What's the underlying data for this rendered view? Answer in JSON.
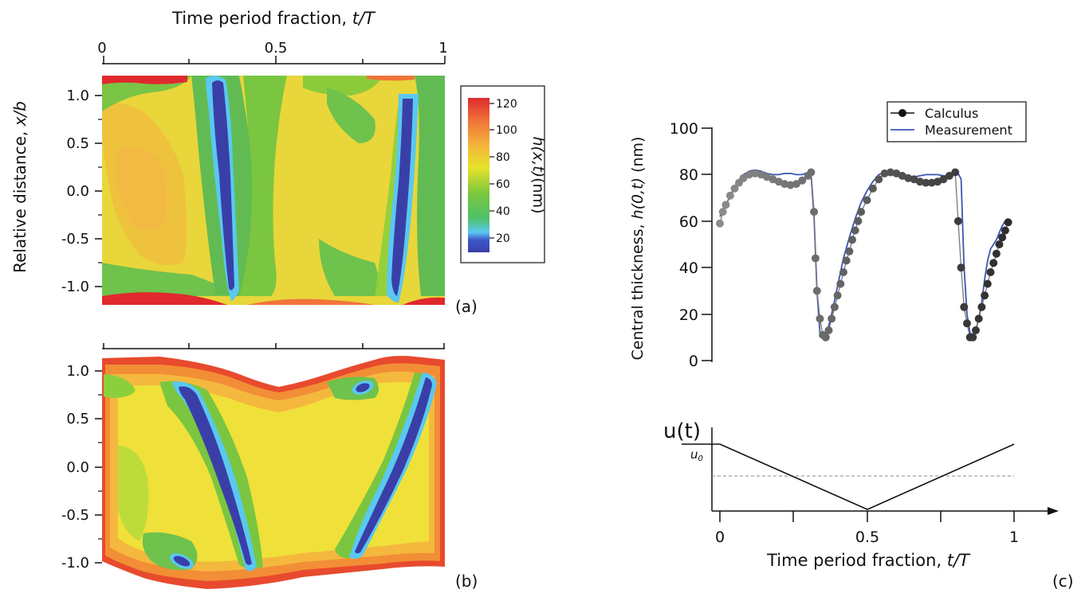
{
  "panel_a": {
    "top_axis_title": "Time period fraction, ",
    "top_axis_title_var": "t/T",
    "top_ticks": [
      "0",
      "0.5",
      "1"
    ],
    "y_axis_title": "Relative distance, ",
    "y_axis_title_var": "x/b",
    "y_ticks": [
      "1.0",
      "0.5",
      "0.0",
      "-0.5",
      "-1.0"
    ],
    "label": "(a)",
    "colorbar": {
      "title_var": "h(x,t)",
      "title_unit": "(nm)",
      "ticks": [
        "120",
        "100",
        "80",
        "60",
        "40",
        "20"
      ],
      "range": [
        10,
        125
      ]
    }
  },
  "panel_b": {
    "y_ticks": [
      "1.0",
      "0.5",
      "0.0",
      "-0.5",
      "-1.0"
    ],
    "label": "(b)"
  },
  "panel_c": {
    "label": "(c)",
    "y_axis_title": "Central thickness, ",
    "y_axis_title_var": "h(0,t)",
    "y_axis_unit": " (nm)",
    "y_ticks": [
      "100",
      "80",
      "60",
      "40",
      "20",
      "0"
    ],
    "legend": [
      "Calculus",
      "Measurement"
    ],
    "inset_ylabel": "u(t)",
    "inset_u0": "u",
    "inset_u0_sub": "0",
    "x_ticks": [
      "0",
      "0.5",
      "1"
    ],
    "x_axis_title": "Time period fraction, ",
    "x_axis_title_var": "t/T",
    "colors": {
      "calculus_light": "#8c8c8c",
      "calculus_dark": "#2a2a2a",
      "measurement": "#3c55b4"
    }
  },
  "chart_data": [
    {
      "type": "heatmap",
      "panel": "a",
      "x_range": [
        0,
        1
      ],
      "y_range": [
        -1.2,
        1.2
      ],
      "z_range": [
        10,
        125
      ],
      "z_unit": "nm"
    },
    {
      "type": "heatmap",
      "panel": "b",
      "x_range": [
        0,
        1
      ],
      "y_range": [
        -1.2,
        1.2
      ],
      "z_range": [
        10,
        125
      ],
      "z_unit": "nm"
    },
    {
      "type": "scatter",
      "panel": "c",
      "ylim": [
        0,
        100
      ],
      "xlim": [
        0,
        1
      ],
      "series": [
        {
          "name": "Calculus",
          "x": [
            0.0,
            0.01,
            0.02,
            0.035,
            0.05,
            0.065,
            0.08,
            0.1,
            0.12,
            0.14,
            0.16,
            0.18,
            0.2,
            0.22,
            0.24,
            0.26,
            0.28,
            0.3,
            0.31,
            0.32,
            0.325,
            0.33,
            0.34,
            0.35,
            0.36,
            0.37,
            0.38,
            0.39,
            0.4,
            0.41,
            0.42,
            0.43,
            0.44,
            0.45,
            0.46,
            0.47,
            0.48,
            0.5,
            0.52,
            0.54,
            0.56,
            0.58,
            0.6,
            0.62,
            0.64,
            0.66,
            0.68,
            0.7,
            0.72,
            0.74,
            0.76,
            0.78,
            0.8,
            0.81,
            0.82,
            0.83,
            0.84,
            0.85,
            0.86,
            0.87,
            0.88,
            0.89,
            0.9,
            0.91,
            0.92,
            0.93,
            0.94,
            0.95,
            0.96,
            0.97,
            0.98
          ],
          "y": [
            59,
            64,
            67,
            71,
            74,
            76.5,
            78.5,
            80,
            80.5,
            80,
            79,
            78,
            77,
            76,
            75.5,
            76,
            77.5,
            79.5,
            81,
            64,
            44,
            30,
            18,
            11,
            10,
            13,
            18,
            23,
            28,
            33,
            38,
            43,
            47,
            52,
            56,
            60,
            64,
            69,
            74,
            78,
            80.5,
            81,
            80.5,
            79.5,
            78.5,
            78,
            77,
            76.5,
            76.5,
            77,
            78,
            79.5,
            81,
            60,
            40,
            23,
            16,
            10,
            10,
            13,
            18,
            23,
            28,
            33,
            38,
            42,
            46,
            50,
            53,
            56,
            59.5
          ]
        },
        {
          "name": "Measurement",
          "x": [
            0.0,
            0.02,
            0.04,
            0.06,
            0.08,
            0.1,
            0.12,
            0.14,
            0.16,
            0.18,
            0.2,
            0.22,
            0.24,
            0.26,
            0.28,
            0.3,
            0.31,
            0.32,
            0.33,
            0.34,
            0.35,
            0.36,
            0.37,
            0.38,
            0.4,
            0.42,
            0.44,
            0.46,
            0.48,
            0.5,
            0.52,
            0.54,
            0.56,
            0.58,
            0.6,
            0.62,
            0.64,
            0.66,
            0.68,
            0.7,
            0.72,
            0.74,
            0.76,
            0.78,
            0.8,
            0.81,
            0.82,
            0.83,
            0.84,
            0.85,
            0.86,
            0.87,
            0.88,
            0.89,
            0.9,
            0.91,
            0.92,
            0.93,
            0.94,
            0.95,
            0.96,
            0.97,
            0.98
          ],
          "y": [
            62,
            67,
            72,
            77,
            80,
            81.5,
            82,
            81.5,
            80.5,
            80,
            80,
            80.5,
            80.5,
            80,
            80,
            81,
            80,
            62,
            30,
            12,
            10,
            11,
            15,
            20,
            32,
            44,
            53,
            61,
            68,
            73,
            77,
            80,
            81,
            81,
            80.5,
            79.5,
            79,
            79,
            79.5,
            80,
            80,
            80,
            79.5,
            79.5,
            80.5,
            80.5,
            78,
            40,
            20,
            12,
            11,
            13,
            18,
            25,
            35,
            43,
            48,
            50,
            52,
            55,
            58,
            60,
            61
          ]
        }
      ]
    },
    {
      "type": "line",
      "panel": "c-inset",
      "x": [
        0,
        0.5,
        1
      ],
      "y": [
        1,
        -1,
        1
      ],
      "xlim": [
        0,
        1
      ]
    }
  ]
}
